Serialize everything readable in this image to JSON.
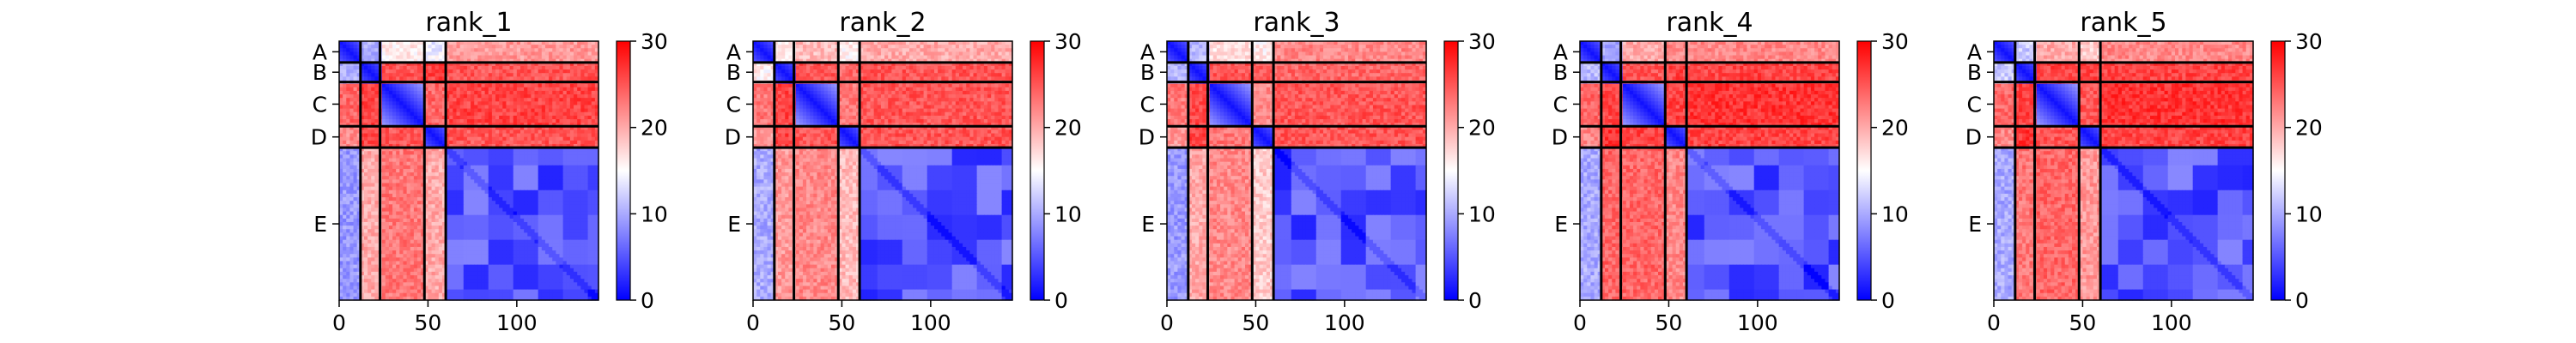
{
  "chart_data": {
    "type": "heatmap",
    "colormap": [
      "#0000ff",
      "#ffffff",
      "#ff0000"
    ],
    "clim": [
      0,
      30
    ],
    "colorbar_ticks": [
      0,
      10,
      20,
      30
    ],
    "x_ticks": [
      0,
      50,
      100
    ],
    "xlim": [
      0,
      146
    ],
    "chain_labels": [
      "A",
      "B",
      "C",
      "D",
      "E"
    ],
    "chain_boundaries": [
      0,
      12,
      23,
      48,
      60,
      146
    ],
    "panels": [
      {
        "title": "rank_1",
        "chain_means": [
          [
            1,
            10,
            16,
            14,
            21
          ],
          [
            10,
            1,
            25,
            26,
            25
          ],
          [
            24,
            26,
            1,
            24,
            26
          ],
          [
            22,
            26,
            25,
            1,
            25
          ],
          [
            9,
            20,
            23,
            20,
            2
          ]
        ]
      },
      {
        "title": "rank_2",
        "chain_means": [
          [
            1,
            16,
            19,
            16,
            20
          ],
          [
            16,
            1,
            25,
            24,
            25
          ],
          [
            23,
            26,
            1,
            23,
            25
          ],
          [
            21,
            26,
            25,
            1,
            25
          ],
          [
            10,
            21,
            22,
            19,
            2
          ]
        ]
      },
      {
        "title": "rank_3",
        "chain_means": [
          [
            1,
            11,
            17,
            16,
            22
          ],
          [
            11,
            1,
            25,
            25,
            24
          ],
          [
            23,
            26,
            1,
            22,
            25
          ],
          [
            21,
            26,
            23,
            1,
            25
          ],
          [
            9,
            20,
            22,
            18,
            2
          ]
        ]
      },
      {
        "title": "rank_4",
        "chain_means": [
          [
            1,
            10,
            20,
            22,
            22
          ],
          [
            11,
            1,
            25,
            26,
            26
          ],
          [
            24,
            26,
            1,
            26,
            27
          ],
          [
            22,
            27,
            26,
            1,
            26
          ],
          [
            10,
            24,
            24,
            22,
            2
          ]
        ]
      },
      {
        "title": "rank_5",
        "chain_means": [
          [
            1,
            12,
            20,
            18,
            22
          ],
          [
            12,
            1,
            26,
            26,
            26
          ],
          [
            24,
            26,
            1,
            25,
            27
          ],
          [
            22,
            27,
            25,
            1,
            26
          ],
          [
            10,
            23,
            24,
            21,
            2
          ]
        ]
      }
    ]
  }
}
